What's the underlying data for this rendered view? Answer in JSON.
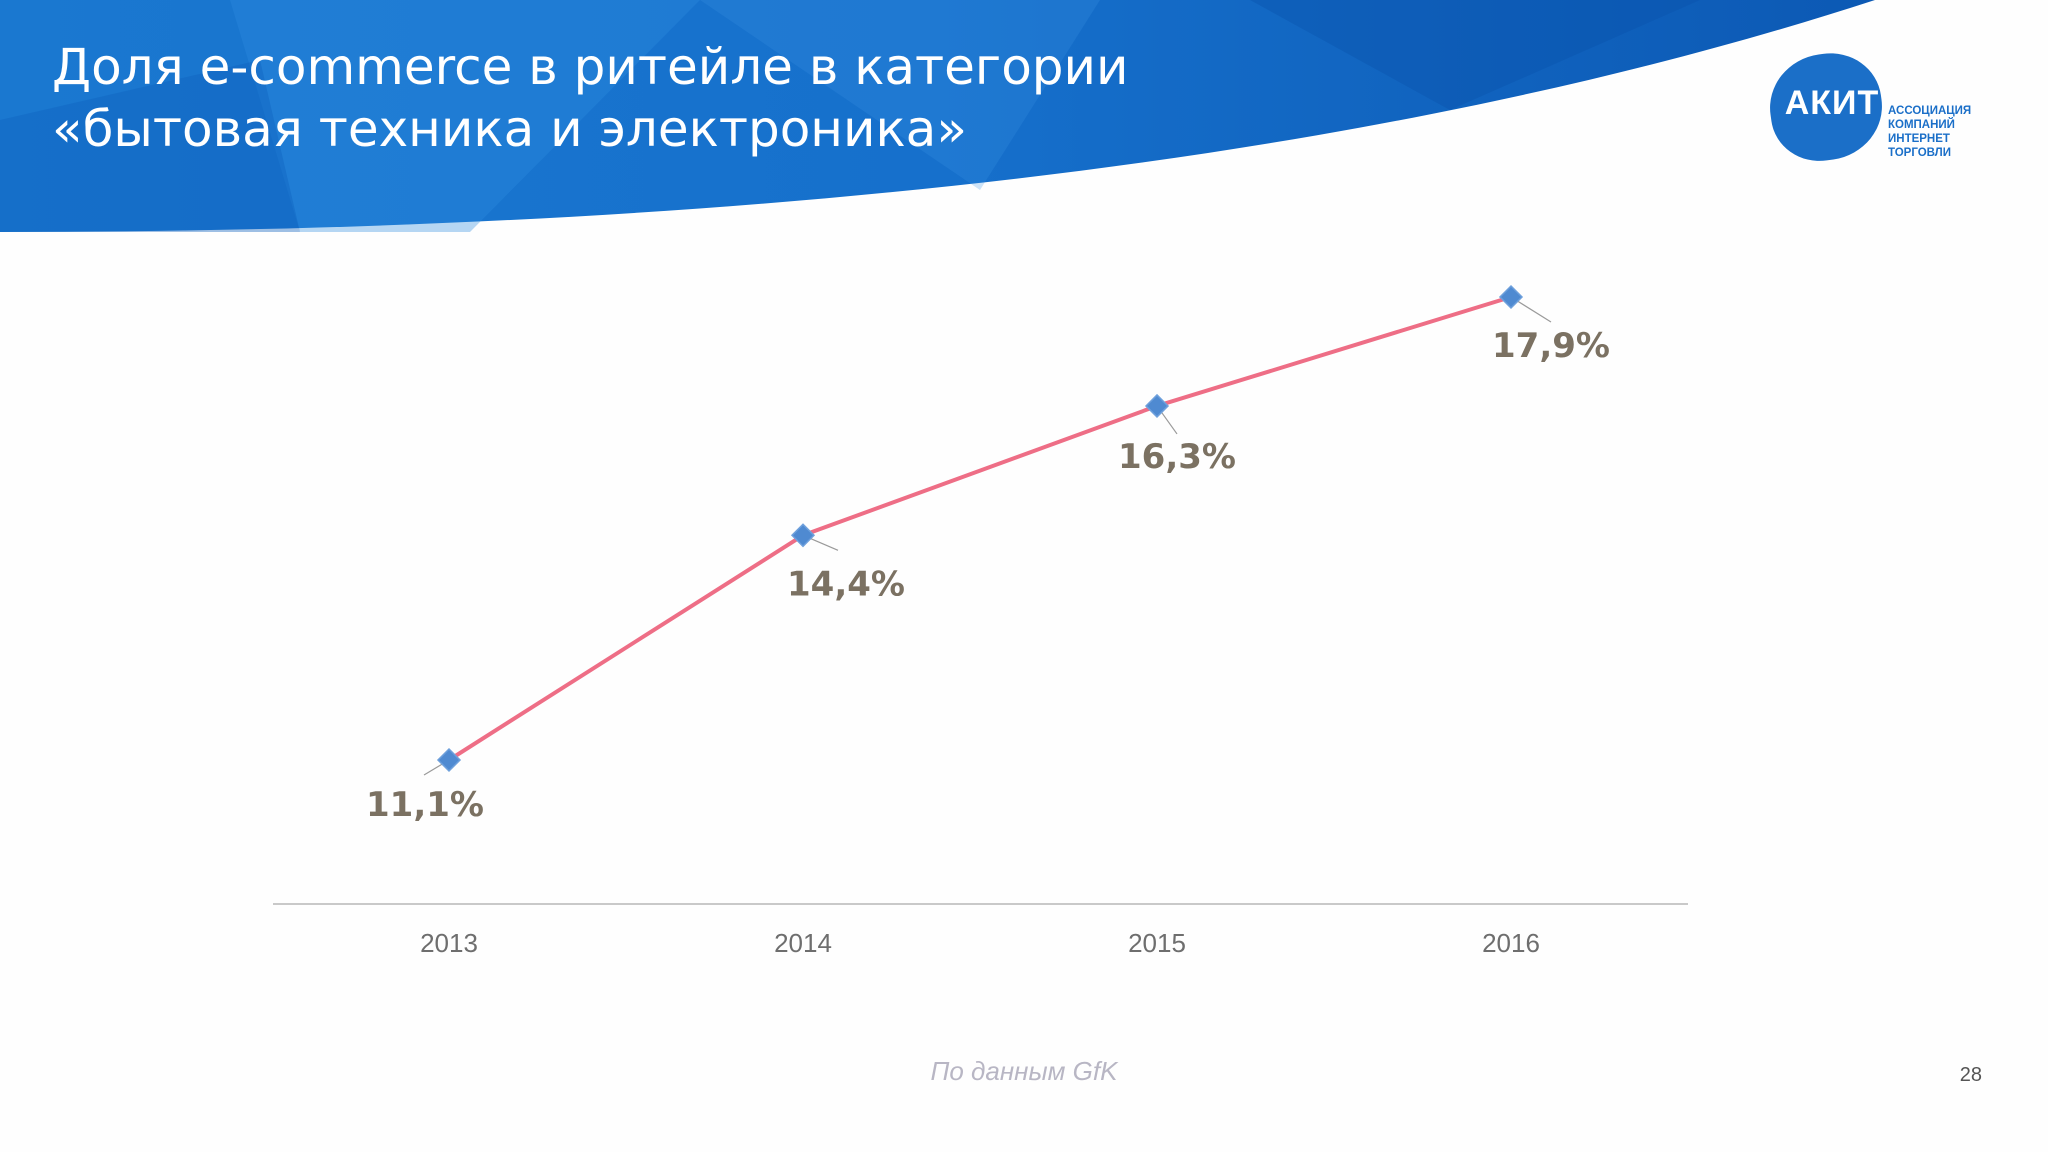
{
  "slide": {
    "title_line1": "Доля e-commerce в ритейле в категории",
    "title_line2": "«бытовая техника и электроника»",
    "source_note": "По данным GfK",
    "page_number": "28"
  },
  "logo": {
    "mark_text": "АКИТ",
    "caption_lines": [
      "АССОЦИАЦИЯ",
      "КОМПАНИЙ",
      "ИНТЕРНЕТ",
      "ТОРГОВЛИ"
    ]
  },
  "colors": {
    "header_blue": "#1565c0",
    "line": "#ee6e86",
    "marker": "#4f8ad1",
    "data_label": "#7b7162",
    "axis": "#c9c9c9"
  },
  "chart_data": {
    "type": "line",
    "categories": [
      "2013",
      "2014",
      "2015",
      "2016"
    ],
    "values": [
      11.1,
      14.4,
      16.3,
      17.9
    ],
    "data_labels": [
      "11,1%",
      "14,4%",
      "16,3%",
      "17,9%"
    ],
    "value_axis_visible": false,
    "grid": false,
    "legend": "none",
    "marker": "diamond"
  }
}
